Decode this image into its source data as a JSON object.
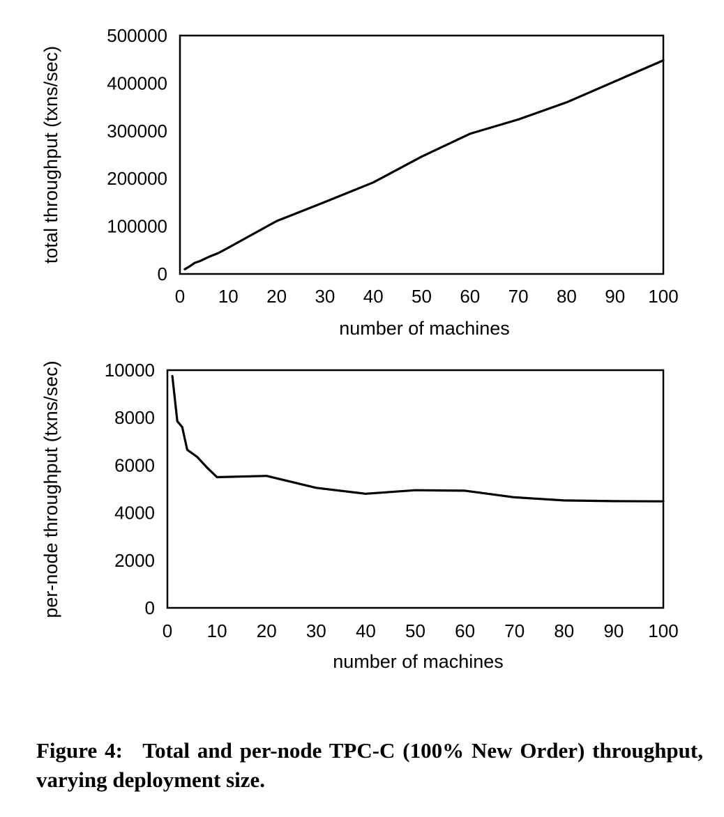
{
  "chart_data": [
    {
      "type": "line",
      "xlabel": "number of machines",
      "ylabel": "total throughput (txns/sec)",
      "xlim": [
        0,
        100
      ],
      "ylim": [
        0,
        500000
      ],
      "xticks": [
        "0",
        "10",
        "20",
        "30",
        "40",
        "50",
        "60",
        "70",
        "80",
        "90",
        "100"
      ],
      "yticks": [
        "0",
        "100000",
        "200000",
        "300000",
        "400000",
        "500000"
      ],
      "grid": false,
      "series": [
        {
          "x": [
            1,
            2,
            3,
            4,
            6,
            8,
            10,
            20,
            30,
            40,
            50,
            60,
            70,
            80,
            90,
            100
          ],
          "values": [
            10000,
            16000,
            23000,
            26500,
            36000,
            44000,
            55000,
            111000,
            151000,
            192000,
            246000,
            294000,
            324000,
            360000,
            404000,
            448000
          ]
        }
      ]
    },
    {
      "type": "line",
      "xlabel": "number of machines",
      "ylabel": "per-node throughput (txns/sec)",
      "xlim": [
        0,
        100
      ],
      "ylim": [
        0,
        10000
      ],
      "xticks": [
        "0",
        "10",
        "20",
        "30",
        "40",
        "50",
        "60",
        "70",
        "80",
        "90",
        "100"
      ],
      "yticks": [
        "0",
        "2000",
        "4000",
        "6000",
        "8000",
        "10000"
      ],
      "grid": false,
      "series": [
        {
          "x": [
            1,
            2,
            3,
            4,
            6,
            8,
            10,
            20,
            30,
            40,
            50,
            60,
            70,
            80,
            90,
            100
          ],
          "values": [
            9750,
            7850,
            7600,
            6650,
            6350,
            5900,
            5500,
            5550,
            5050,
            4800,
            4950,
            4930,
            4650,
            4520,
            4490,
            4480
          ]
        }
      ]
    }
  ],
  "caption": {
    "label": "Figure 4:",
    "text": "Total and per-node TPC-C (100% New Order) throughput, varying deployment size."
  }
}
